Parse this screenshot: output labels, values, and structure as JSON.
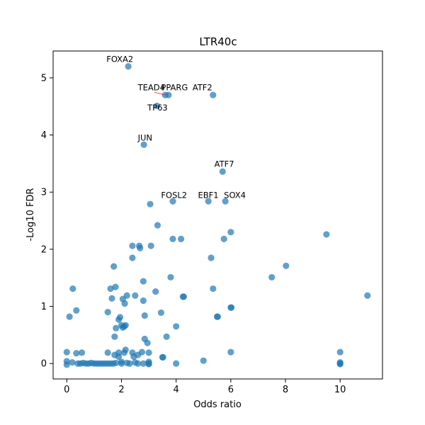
{
  "chart_data": {
    "type": "scatter",
    "title": "LTR40c",
    "xlabel": "Odds ratio",
    "ylabel": "-Log10 FDR",
    "xlim": [
      -0.5,
      11.55
    ],
    "ylim": [
      -0.27,
      5.47
    ],
    "xticks": [
      0,
      2,
      4,
      6,
      8,
      10
    ],
    "yticks": [
      0,
      1,
      2,
      3,
      4,
      5
    ],
    "grid": false,
    "point_color": "#1f77b4",
    "points": [
      [
        2.25,
        5.2
      ],
      [
        3.6,
        4.7
      ],
      [
        3.72,
        4.7
      ],
      [
        5.35,
        4.7
      ],
      [
        3.3,
        4.51
      ],
      [
        2.82,
        3.83
      ],
      [
        5.7,
        3.36
      ],
      [
        3.05,
        2.79
      ],
      [
        3.88,
        2.84
      ],
      [
        5.18,
        2.84
      ],
      [
        5.8,
        2.84
      ],
      [
        3.32,
        2.42
      ],
      [
        6.0,
        2.3
      ],
      [
        9.5,
        2.26
      ],
      [
        3.88,
        2.18
      ],
      [
        4.18,
        2.18
      ],
      [
        5.75,
        2.18
      ],
      [
        2.4,
        2.06
      ],
      [
        2.65,
        2.06
      ],
      [
        3.08,
        2.06
      ],
      [
        2.68,
        2.02
      ],
      [
        2.4,
        1.85
      ],
      [
        5.28,
        1.85
      ],
      [
        1.72,
        1.7
      ],
      [
        8.02,
        1.71
      ],
      [
        3.8,
        1.51
      ],
      [
        7.5,
        1.51
      ],
      [
        2.8,
        1.44
      ],
      [
        1.6,
        1.31
      ],
      [
        1.78,
        1.34
      ],
      [
        0.22,
        1.31
      ],
      [
        5.35,
        1.31
      ],
      [
        3.25,
        1.26
      ],
      [
        2.2,
        1.19
      ],
      [
        2.5,
        1.19
      ],
      [
        4.25,
        1.17
      ],
      [
        4.28,
        1.17
      ],
      [
        11.0,
        1.19
      ],
      [
        1.65,
        1.14
      ],
      [
        2.05,
        1.13
      ],
      [
        2.8,
        1.1
      ],
      [
        2.12,
        1.05
      ],
      [
        6.0,
        0.98
      ],
      [
        6.02,
        0.98
      ],
      [
        0.35,
        0.93
      ],
      [
        1.5,
        0.9
      ],
      [
        3.45,
        0.89
      ],
      [
        2.85,
        0.84
      ],
      [
        0.1,
        0.82
      ],
      [
        5.5,
        0.82
      ],
      [
        5.52,
        0.82
      ],
      [
        1.95,
        0.81
      ],
      [
        1.9,
        0.77
      ],
      [
        2.0,
        0.67
      ],
      [
        2.15,
        0.67
      ],
      [
        2.1,
        0.65
      ],
      [
        1.8,
        0.62
      ],
      [
        4.0,
        0.65
      ],
      [
        2.05,
        0.63
      ],
      [
        3.65,
        0.47
      ],
      [
        1.75,
        0.47
      ],
      [
        2.85,
        0.43
      ],
      [
        2.95,
        0.36
      ],
      [
        2.15,
        0.24
      ],
      [
        1.5,
        0.19
      ],
      [
        2.4,
        0.19
      ],
      [
        2.75,
        0.2
      ],
      [
        3.0,
        0.19
      ],
      [
        6.0,
        0.2
      ],
      [
        10.0,
        0.2
      ],
      [
        1.9,
        0.19
      ],
      [
        2.1,
        0.19
      ],
      [
        0.0,
        0.2
      ],
      [
        0.35,
        0.18
      ],
      [
        0.55,
        0.19
      ],
      [
        1.75,
        0.15
      ],
      [
        2.6,
        0.15
      ],
      [
        1.9,
        0.12
      ],
      [
        3.5,
        0.11
      ],
      [
        3.52,
        0.11
      ],
      [
        2.45,
        0.12
      ],
      [
        0.0,
        0.04
      ],
      [
        0.2,
        0.02
      ],
      [
        0.4,
        0.0
      ],
      [
        0.6,
        0.01
      ],
      [
        0.8,
        0.0
      ],
      [
        1.0,
        0.0
      ],
      [
        1.2,
        0.0
      ],
      [
        1.4,
        0.0
      ],
      [
        1.6,
        0.0
      ],
      [
        1.8,
        0.01
      ],
      [
        2.0,
        0.0
      ],
      [
        2.3,
        0.0
      ],
      [
        2.5,
        0.02
      ],
      [
        2.8,
        0.0
      ],
      [
        3.0,
        0.0
      ],
      [
        3.0,
        0.03
      ],
      [
        4.0,
        0.0
      ],
      [
        5.0,
        0.05
      ],
      [
        10.0,
        0.0
      ],
      [
        10.0,
        0.02
      ],
      [
        0.5,
        0.0
      ],
      [
        0.7,
        0.0
      ],
      [
        0.9,
        0.01
      ],
      [
        1.1,
        0.0
      ],
      [
        1.3,
        0.0
      ],
      [
        1.5,
        0.0
      ],
      [
        1.7,
        0.0
      ],
      [
        2.2,
        0.01
      ],
      [
        2.6,
        0.0
      ],
      [
        0.0,
        -0.02
      ],
      [
        2.0,
        0.03
      ],
      [
        3.0,
        -0.01
      ],
      [
        10.0,
        -0.01
      ]
    ],
    "annotations": [
      {
        "label": "FOXA2",
        "x": 1.45,
        "y": 5.28
      },
      {
        "label": "TEAD4",
        "x": 2.6,
        "y": 4.78
      },
      {
        "label": "PPARG",
        "x": 3.45,
        "y": 4.78
      },
      {
        "label": "ATF2",
        "x": 4.6,
        "y": 4.78
      },
      {
        "label": "TP63",
        "x": 2.95,
        "y": 4.43
      },
      {
        "label": "JUN",
        "x": 2.6,
        "y": 3.9
      },
      {
        "label": "ATF7",
        "x": 5.4,
        "y": 3.44
      },
      {
        "label": "FOSL2",
        "x": 3.45,
        "y": 2.9
      },
      {
        "label": "EBF1",
        "x": 4.8,
        "y": 2.9
      },
      {
        "label": "SOX4",
        "x": 5.75,
        "y": 2.9
      }
    ],
    "leader_lines": [
      {
        "from": [
          3.2,
          4.75
        ],
        "to": [
          3.6,
          4.7
        ]
      }
    ]
  }
}
